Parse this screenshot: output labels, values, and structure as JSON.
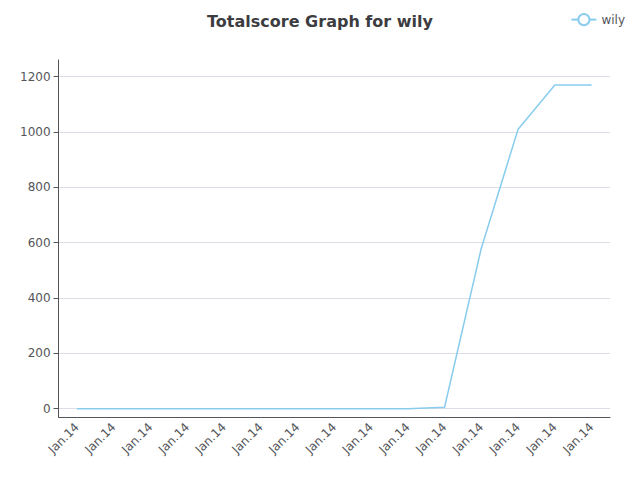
{
  "chart_data": {
    "type": "line",
    "title": "Totalscore Graph for wily",
    "categories": [
      "Jan.14",
      "Jan.14",
      "Jan.14",
      "Jan.14",
      "Jan.14",
      "Jan.14",
      "Jan.14",
      "Jan.14",
      "Jan.14",
      "Jan.14",
      "Jan.14",
      "Jan.14",
      "Jan.14",
      "Jan.14",
      "Jan.14"
    ],
    "series": [
      {
        "name": "wily",
        "color": "#88ccee",
        "values": [
          0,
          0,
          0,
          0,
          0,
          0,
          0,
          0,
          0,
          0,
          5,
          580,
          1010,
          1170,
          1170
        ]
      }
    ],
    "ylim": [
      -30,
      1260
    ],
    "yticks": [
      0,
      200,
      400,
      600,
      800,
      1000,
      1200
    ],
    "grid": true,
    "legend": "upper right"
  }
}
